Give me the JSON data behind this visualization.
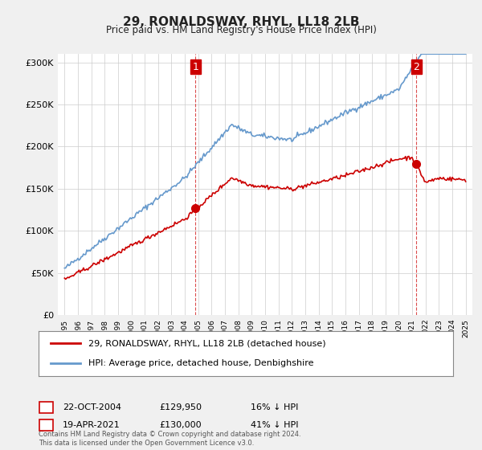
{
  "title": "29, RONALDSWAY, RHYL, LL18 2LB",
  "subtitle": "Price paid vs. HM Land Registry's House Price Index (HPI)",
  "legend_line1": "29, RONALDSWAY, RHYL, LL18 2LB (detached house)",
  "legend_line2": "HPI: Average price, detached house, Denbighshire",
  "transaction1_label": "1",
  "transaction1_date": "22-OCT-2004",
  "transaction1_price": "£129,950",
  "transaction1_hpi": "16% ↓ HPI",
  "transaction2_label": "2",
  "transaction2_date": "19-APR-2021",
  "transaction2_price": "£130,000",
  "transaction2_hpi": "41% ↓ HPI",
  "footer": "Contains HM Land Registry data © Crown copyright and database right 2024.\nThis data is licensed under the Open Government Licence v3.0.",
  "hpi_color": "#6699cc",
  "price_color": "#cc0000",
  "marker_color": "#cc0000",
  "vline_color": "#cc0000",
  "background_color": "#f0f0f0",
  "plot_bg_color": "#ffffff",
  "ylim": [
    0,
    310000
  ],
  "yticks": [
    0,
    50000,
    100000,
    150000,
    200000,
    250000,
    300000
  ],
  "transaction1_x": 2004.8,
  "transaction2_x": 2021.3
}
